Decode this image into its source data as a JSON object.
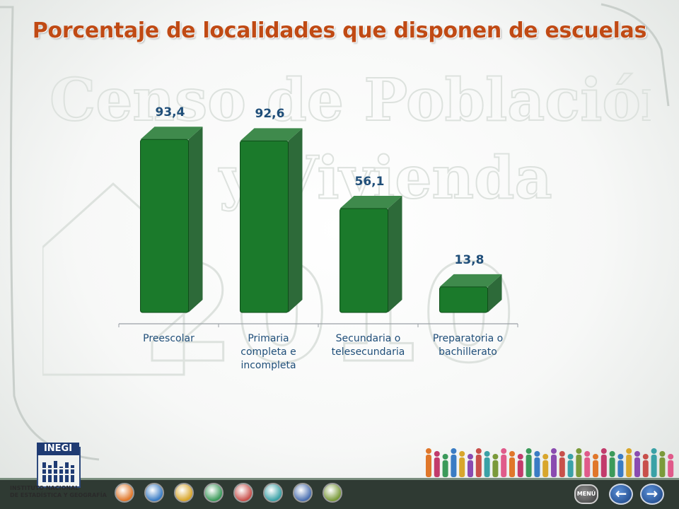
{
  "slide": {
    "title": "Porcentaje de localidades que disponen de escuelas"
  },
  "chart_data": {
    "type": "bar",
    "title": "Porcentaje de localidades que disponen de escuelas",
    "categories": [
      "Preescolar",
      "Primaria completa e incompleta",
      "Secundaria o telesecundaria",
      "Preparatoria o bachillerato"
    ],
    "category_lines": [
      [
        "Preescolar"
      ],
      [
        "Primaria",
        "completa e",
        "incompleta"
      ],
      [
        "Secundaria o",
        "telesecundaria"
      ],
      [
        "Preparatoria o",
        "bachillerato"
      ]
    ],
    "values": [
      93.4,
      92.6,
      56.1,
      13.8
    ],
    "value_labels": [
      "93,4",
      "92,6",
      "56,1",
      "13,8"
    ],
    "ylim": [
      0,
      100
    ],
    "xlabel": "",
    "ylabel": "",
    "grid": false,
    "legend": "none",
    "bar_color": "#1b7a2b",
    "label_color": "#1f4e79"
  },
  "logo": {
    "name": "INEGI",
    "subtitle_lines": [
      "INSTITUTO NACIONAL",
      "DE ESTADÍSTICA Y GEOGRAFÍA"
    ]
  },
  "navigation": {
    "menu_label": "MENÚ",
    "back_icon": "arrow-left-icon",
    "forward_icon": "arrow-right-icon",
    "section_icons": [
      "population-icon",
      "info-icon",
      "households-icon",
      "people-icon",
      "home-icon",
      "housing-icon",
      "communities-icon",
      "documents-icon"
    ],
    "section_colors": [
      "#e0772a",
      "#3a7cc4",
      "#d8a62c",
      "#3b9a5a",
      "#c8504b",
      "#3aa1a6",
      "#4a6fb0",
      "#7a9a3a"
    ]
  },
  "watermark": {
    "lines": [
      "Censo de Población",
      "y Vivienda",
      "2010"
    ]
  }
}
